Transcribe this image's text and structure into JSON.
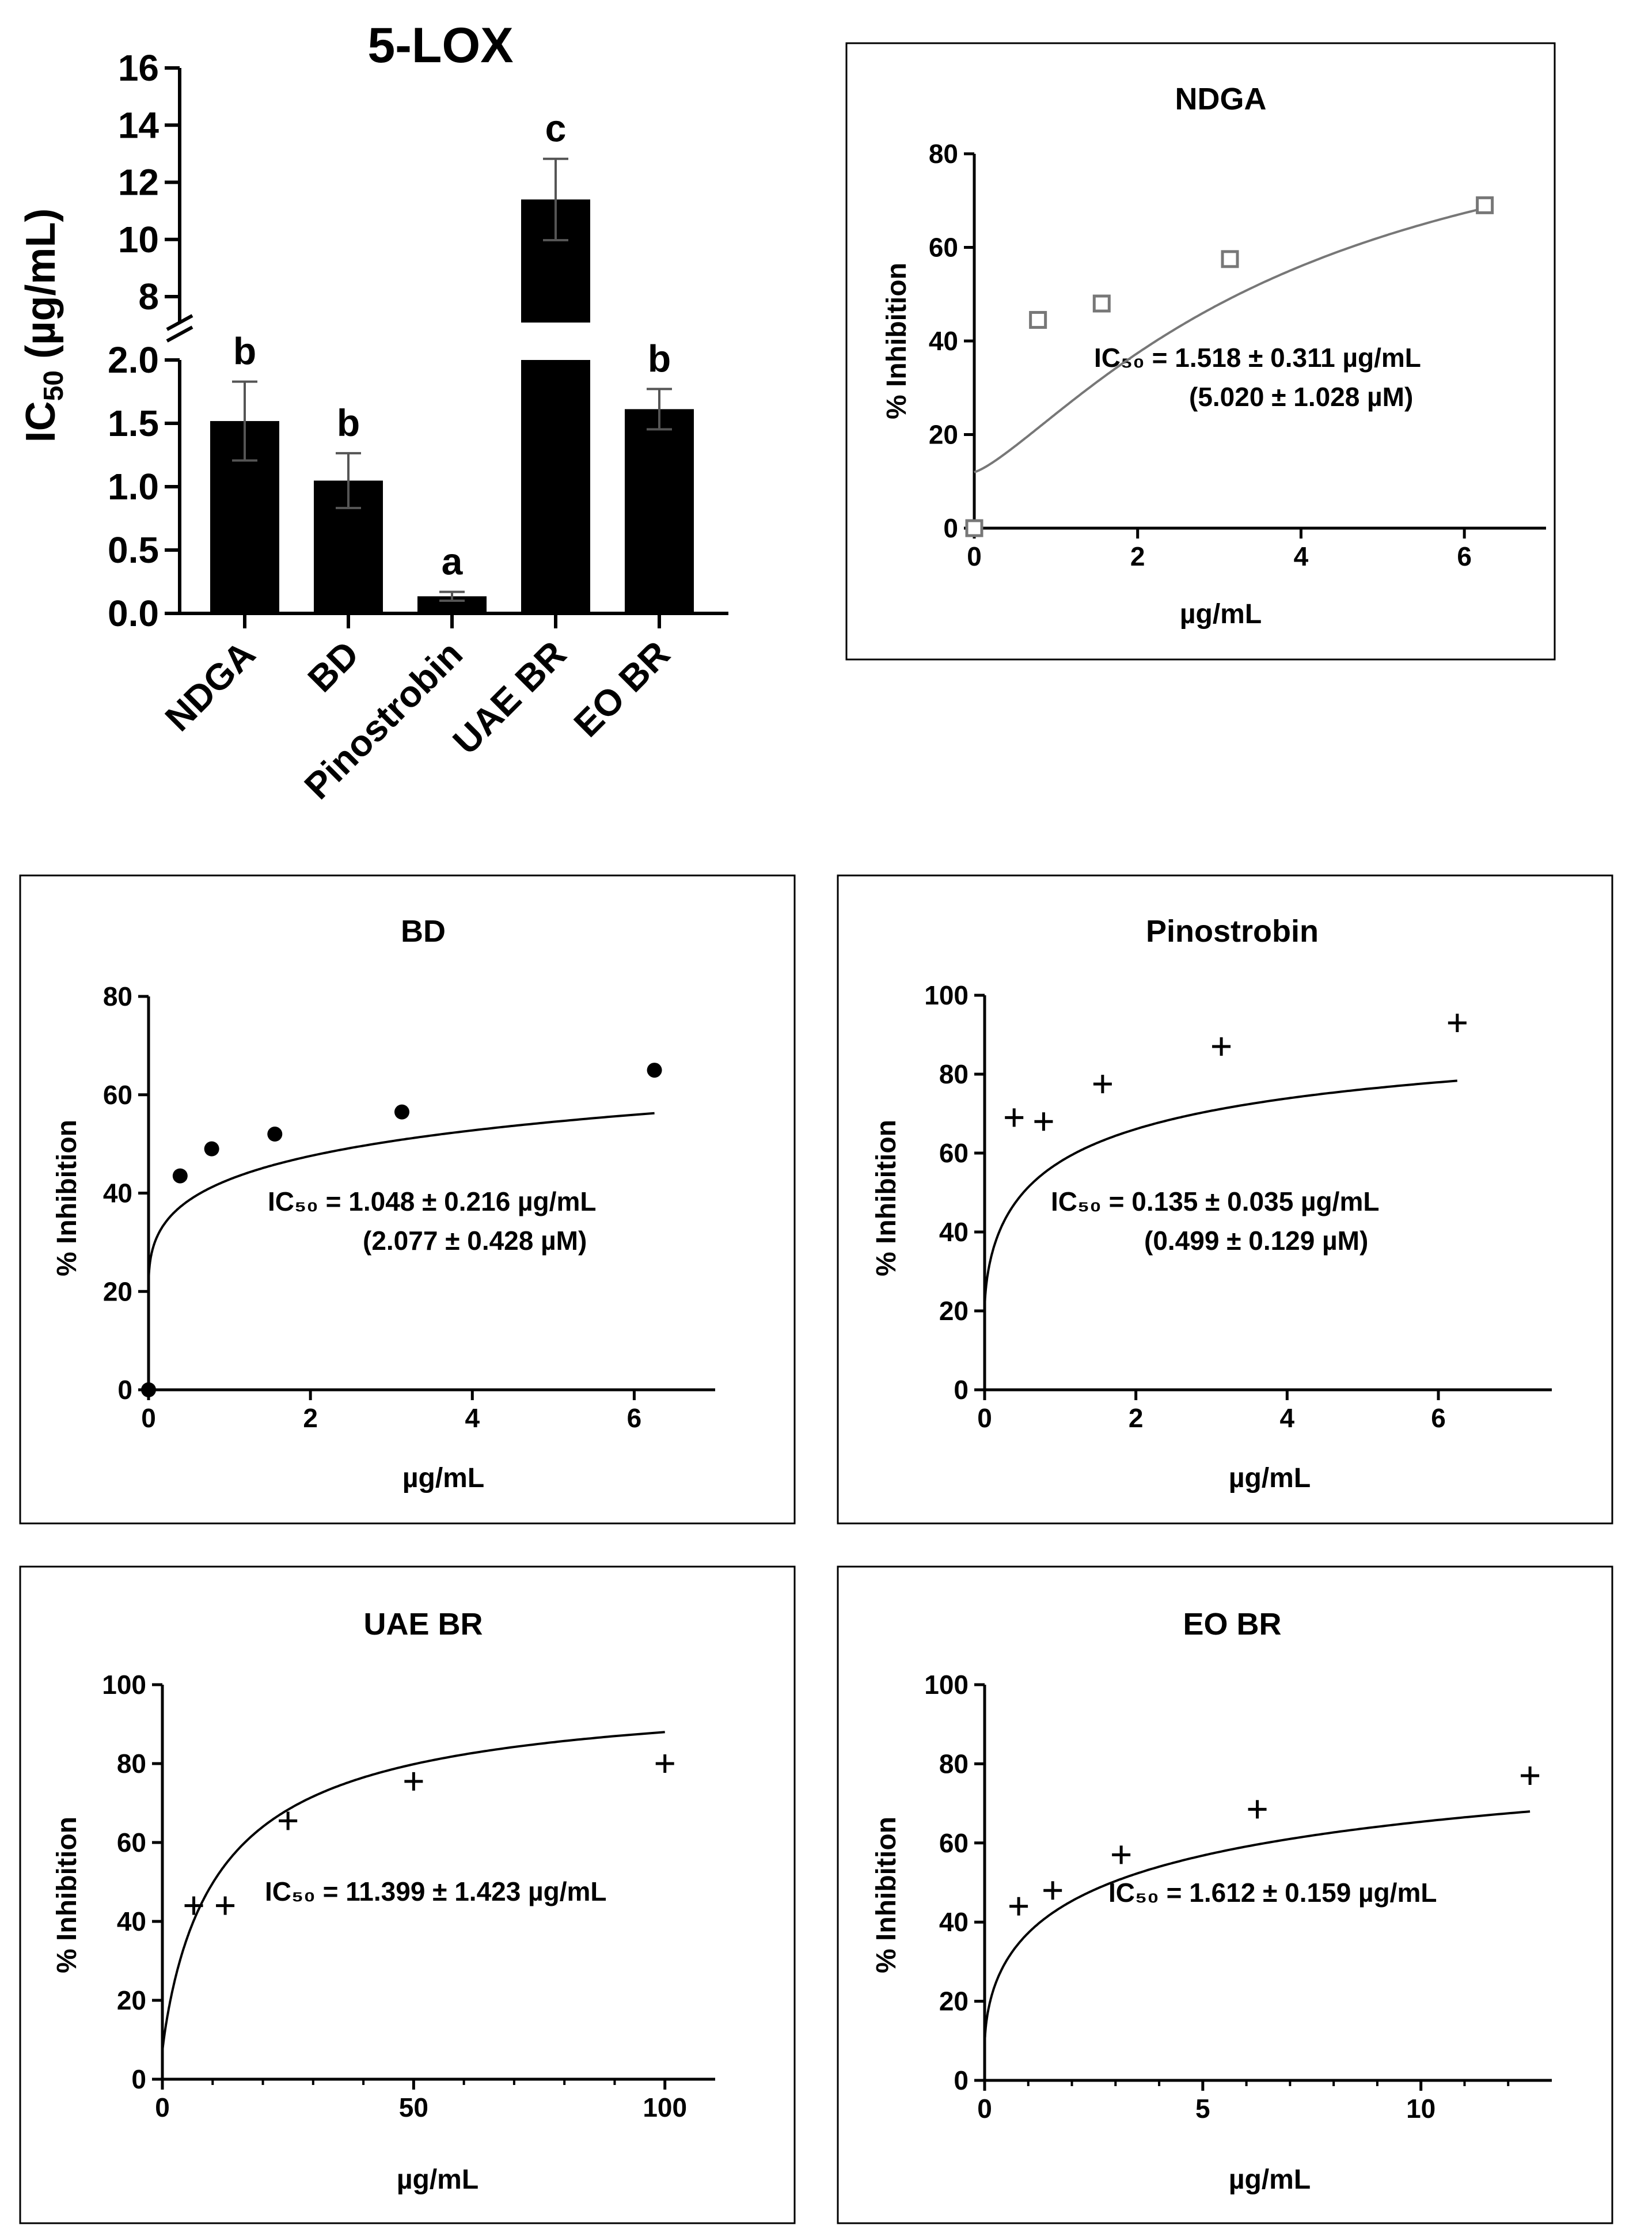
{
  "chart_data": [
    {
      "id": "bar",
      "type": "bar",
      "title": "5-LOX",
      "ylabel": "IC50 (µg/mL)",
      "categories": [
        "NDGA",
        "BD",
        "Pinostrobin",
        "UAE BR",
        "EO BR"
      ],
      "values": [
        1.518,
        1.048,
        0.135,
        11.399,
        1.612
      ],
      "errors": [
        0.311,
        0.216,
        0.035,
        1.423,
        0.159
      ],
      "letters": [
        "b",
        "b",
        "a",
        "c",
        "b"
      ],
      "y_axis_broken": true,
      "lower_ylim": [
        0,
        2.0
      ],
      "lower_ticks": [
        "0.0",
        "0.5",
        "1.0",
        "1.5",
        "2.0"
      ],
      "upper_ylim": [
        7.5,
        16
      ],
      "upper_ticks": [
        "8",
        "10",
        "12",
        "14",
        "16"
      ],
      "colors": {
        "bar": "#000000",
        "error_bar": "#555555"
      }
    },
    {
      "id": "ndga",
      "type": "scatter",
      "title": "NDGA",
      "xlabel": "µg/mL",
      "ylabel": "% Inhibition",
      "xlim": [
        0,
        7
      ],
      "ylim": [
        0,
        80
      ],
      "xticks": [
        0,
        2,
        4,
        6
      ],
      "yticks": [
        0,
        20,
        40,
        60,
        80
      ],
      "marker": "open-square",
      "colors": {
        "points": "#777777",
        "fit": "#777777",
        "axes": "#000000"
      },
      "points": [
        [
          0,
          0
        ],
        [
          0.78,
          44.5
        ],
        [
          1.56,
          48
        ],
        [
          3.13,
          57.5
        ],
        [
          6.25,
          69
        ]
      ],
      "fit": {
        "a": 12,
        "b": 4,
        "h": 1.3
      },
      "ic50_text": "IC₅₀ = 1.518 ± 0.311 µg/mL",
      "molar_text": "(5.020 ± 1.028 µM)"
    },
    {
      "id": "bd",
      "type": "scatter",
      "title": "BD",
      "xlabel": "µg/mL",
      "ylabel": "% Inhibition",
      "xlim": [
        0,
        7
      ],
      "ylim": [
        0,
        80
      ],
      "xticks": [
        0,
        2,
        4,
        6
      ],
      "yticks": [
        0,
        20,
        40,
        60,
        80
      ],
      "marker": "filled-circle",
      "colors": {
        "points": "#000000",
        "fit": "#000000",
        "axes": "#000000"
      },
      "points": [
        [
          0,
          0
        ],
        [
          0.39,
          43.5
        ],
        [
          0.78,
          49
        ],
        [
          1.56,
          52
        ],
        [
          3.13,
          56.5
        ],
        [
          6.25,
          65
        ]
      ],
      "fit": {
        "a": 20,
        "b": 10,
        "h": 0.4
      },
      "ic50_text": "IC₅₀ = 1.048 ± 0.216 µg/mL",
      "molar_text": "(2.077 ± 0.428 µM)"
    },
    {
      "id": "pinostrobin",
      "type": "scatter",
      "title": "Pinostrobin",
      "xlabel": "µg/mL",
      "ylabel": "% Inhibition",
      "xlim": [
        0,
        7.5
      ],
      "ylim": [
        0,
        100
      ],
      "xticks": [
        0,
        2,
        4,
        6
      ],
      "yticks": [
        0,
        20,
        40,
        60,
        80,
        100
      ],
      "marker": "plus",
      "colors": {
        "points": "#000000",
        "fit": "#000000",
        "axes": "#000000"
      },
      "points": [
        [
          0.39,
          69
        ],
        [
          0.78,
          68
        ],
        [
          1.56,
          77.5
        ],
        [
          3.13,
          87
        ],
        [
          6.25,
          93
        ]
      ],
      "fit": {
        "a": 20,
        "b": 1.2,
        "h": 0.6
      },
      "ic50_text": "IC₅₀ = 0.135 ± 0.035 µg/mL",
      "molar_text": "(0.499 ± 0.129 µM)"
    },
    {
      "id": "uae",
      "type": "scatter",
      "title": "UAE BR",
      "xlabel": "µg/mL",
      "ylabel": "% Inhibition",
      "xlim": [
        0,
        110
      ],
      "ylim": [
        0,
        100
      ],
      "xticks": [
        0,
        50,
        100
      ],
      "yticks": [
        0,
        20,
        40,
        60,
        80,
        100
      ],
      "minor_xticks": [
        10,
        20,
        30,
        40,
        60,
        70,
        80,
        90,
        100
      ],
      "marker": "plus",
      "colors": {
        "points": "#000000",
        "fit": "#000000",
        "axes": "#000000"
      },
      "points": [
        [
          6.25,
          44
        ],
        [
          12.5,
          44
        ],
        [
          25,
          65.5
        ],
        [
          50,
          75.5
        ],
        [
          100,
          80
        ]
      ],
      "fit": {
        "a": 7,
        "b": 12,
        "h": 0.9
      },
      "ic50_text": "IC₅₀ = 11.399 ± 1.423 µg/mL",
      "molar_text": ""
    },
    {
      "id": "eo",
      "type": "scatter",
      "title": "EO BR",
      "xlabel": "µg/mL",
      "ylabel": "% Inhibition",
      "xlim": [
        0,
        13
      ],
      "ylim": [
        0,
        100
      ],
      "xticks": [
        0,
        5,
        10
      ],
      "yticks": [
        0,
        20,
        40,
        60,
        80,
        100
      ],
      "minor_xticks": [
        1,
        2,
        3,
        4,
        6,
        7,
        8,
        9,
        11,
        12
      ],
      "marker": "plus",
      "colors": {
        "points": "#000000",
        "fit": "#000000",
        "axes": "#000000"
      },
      "points": [
        [
          0.78,
          44
        ],
        [
          1.56,
          48
        ],
        [
          3.13,
          57
        ],
        [
          6.25,
          68.5
        ],
        [
          12.5,
          77
        ]
      ],
      "fit": {
        "a": 8,
        "b": 4,
        "h": 0.55
      },
      "ic50_text": "IC₅₀ = 1.612 ± 0.159 µg/mL",
      "molar_text": ""
    }
  ]
}
